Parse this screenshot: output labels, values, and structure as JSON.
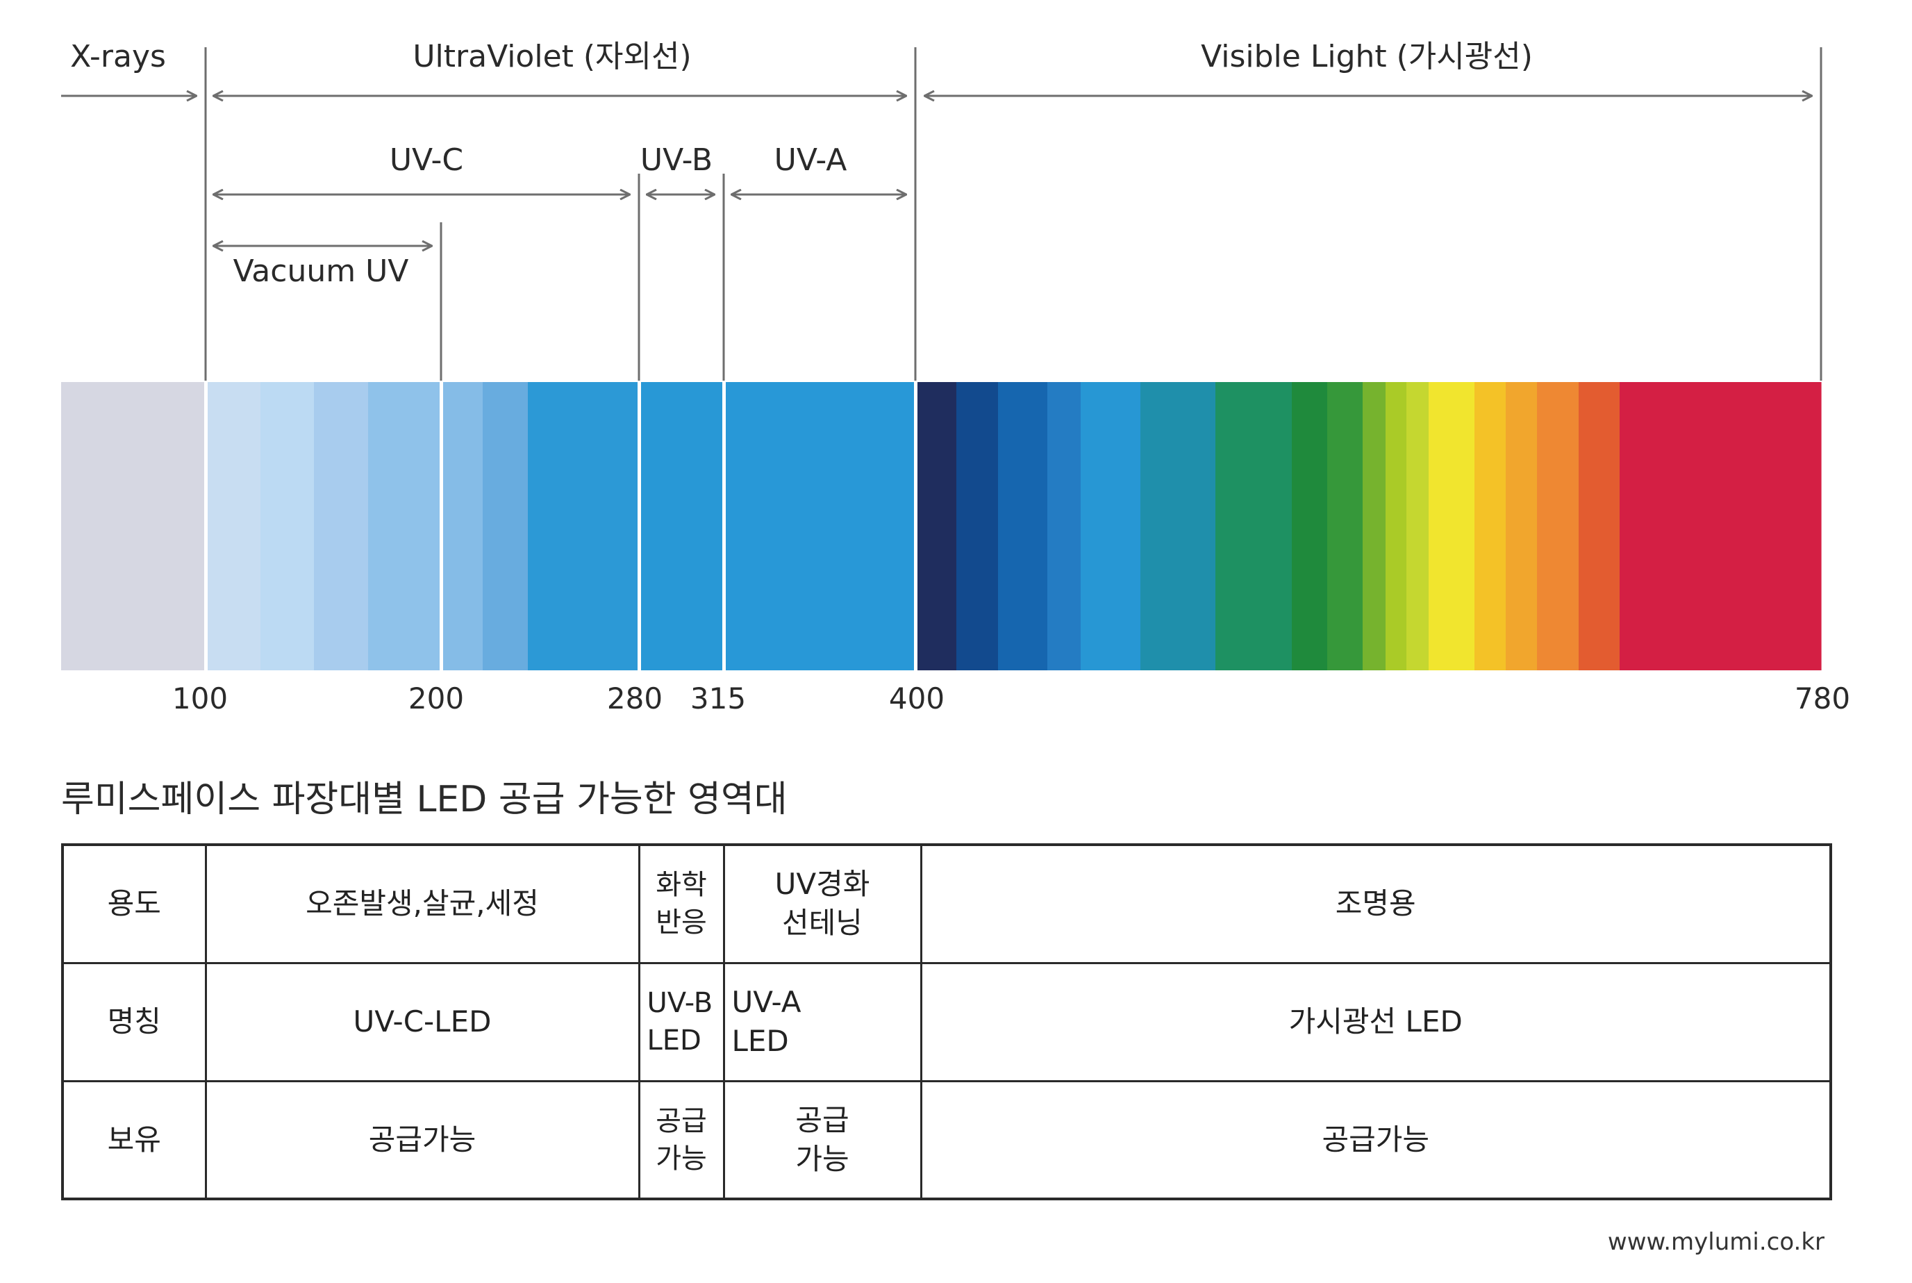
{
  "regions": {
    "xrays": "X-rays",
    "ultraviolet": "UltraViolet (자외선)",
    "visible": "Visible Light (가시광선)"
  },
  "sub_bands": {
    "uvc": "UV-C",
    "uvb": "UV-B",
    "uva": "UV-A",
    "vacuum_uv": "Vacuum UV"
  },
  "ticks": [
    "100",
    "200",
    "280",
    "315",
    "400",
    "780"
  ],
  "spectrum_colors": [
    "#d6d7e2",
    "#c8ddf2",
    "#bcdaf3",
    "#a8ccee",
    "#8fc2ea",
    "#85bce7",
    "#68acdf",
    "#2c99d6",
    "#2898d6",
    "#2898d7",
    "#1f2d5e",
    "#124a8e",
    "#1666af",
    "#247cc3",
    "#2797d4",
    "#1f8fab",
    "#1e9162",
    "#1f8a3c",
    "#36983a",
    "#76b32e",
    "#aacb27",
    "#c5d730",
    "#f1e52e",
    "#f4c227",
    "#f1a62d",
    "#ee8833",
    "#e35c30",
    "#d41f44"
  ],
  "table_title": "루미스페이스 파장대별 LED 공급 가능한 영역대",
  "table": {
    "rows": [
      {
        "header": "용도",
        "cells": [
          [
            "오존발생,살균,세정"
          ],
          [
            "화학",
            "반응"
          ],
          [
            "UV경화",
            "선테닝"
          ],
          [
            "조명용"
          ]
        ]
      },
      {
        "header": "명칭",
        "cells": [
          [
            "UV-C-LED"
          ],
          [
            "UV-B",
            "LED"
          ],
          [
            "UV-A",
            "LED"
          ],
          [
            "가시광선 LED"
          ]
        ]
      },
      {
        "header": "보유",
        "cells": [
          [
            "공급가능"
          ],
          [
            "공급",
            "가능"
          ],
          [
            "공급",
            "가능"
          ],
          [
            "공급가능"
          ]
        ]
      }
    ]
  },
  "source": "www.mylumi.co.kr",
  "colors": {
    "line": "#6e6e6e",
    "text": "#2a2a2a"
  }
}
